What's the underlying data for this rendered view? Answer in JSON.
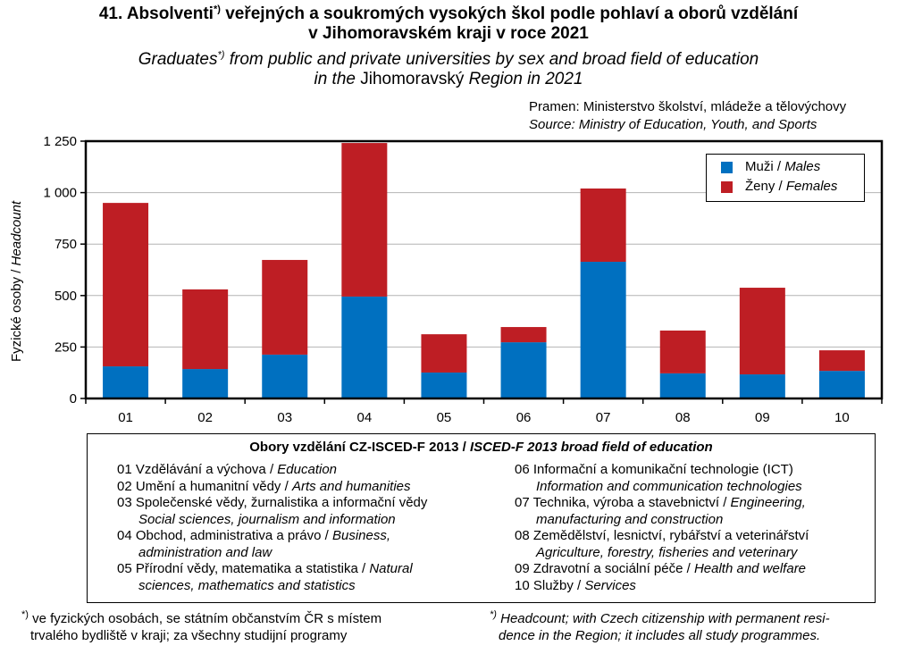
{
  "title": {
    "cz_prefix": "41. Absolventi",
    "cz_sup": "*)",
    "cz_rest": " veřejných a soukromých vysokých škol podle pohlaví a oborů vzdělání",
    "cz_line2": "v Jihomoravském kraji v roce 2021",
    "en_prefix": "Graduates",
    "en_sup": "*)",
    "en_rest": " from public and private universities by sex and broad field of education",
    "en_line2_a": "in the",
    "en_line2_b": " Jihomoravský ",
    "en_line2_c": "Region in 2021"
  },
  "source": {
    "cz": "Pramen: Ministerstvo školství, mládeže a tělovýchovy",
    "en": "Source: Ministry of Education, Youth, and Sports"
  },
  "chart_data": {
    "type": "bar",
    "stacked": true,
    "categories": [
      "01",
      "02",
      "03",
      "04",
      "05",
      "06",
      "07",
      "08",
      "09",
      "10"
    ],
    "series": [
      {
        "name": "Muži / Males",
        "name_cz": "Muži",
        "name_en": "Males",
        "color": "#0070c0",
        "values": [
          156,
          143,
          213,
          495,
          126,
          273,
          664,
          122,
          117,
          134
        ]
      },
      {
        "name": "Ženy / Females",
        "name_cz": "Ženy",
        "name_en": "Females",
        "color": "#be1e24",
        "values": [
          794,
          387,
          460,
          746,
          186,
          74,
          356,
          208,
          421,
          100
        ]
      }
    ],
    "ylabel_cz": "Fyzické osoby / ",
    "ylabel_en": "Headcount",
    "ylim": [
      0,
      1250
    ],
    "yticks": [
      0,
      250,
      500,
      750,
      1000,
      1250
    ],
    "ytick_labels": [
      "0",
      "250",
      "500",
      "750",
      "1 000",
      "1 250"
    ],
    "grid": true,
    "legend_position": "top-right"
  },
  "fields": {
    "heading_cz": "Obory vzdělání CZ-ISCED-F 2013 / ",
    "heading_en": "ISCED-F 2013 broad field of education",
    "left": [
      {
        "cz": "01 Vzdělávání a výchova / ",
        "en": "Education"
      },
      {
        "cz": "02 Umění a humanitní vědy / ",
        "en": "Arts and humanities"
      },
      {
        "cz": "03 Společenské vědy, žurnalistika a informační vědy",
        "en2": "Social sciences, journalism and information"
      },
      {
        "cz": "04 Obchod, administrativa a právo / ",
        "en": "Business,",
        "en2": "administration and law"
      },
      {
        "cz": "05 Přírodní vědy, matematika a statistika / ",
        "en": "Natural",
        "en2": "sciences, mathematics and statistics"
      }
    ],
    "right": [
      {
        "cz": "06 Informační a komunikační technologie (ICT)",
        "en2": "Information and communication technologies"
      },
      {
        "cz": "07 Technika, výroba a stavebnictví / ",
        "en": "Engineering,",
        "en2": "manufacturing and construction"
      },
      {
        "cz": "08 Zemědělství, lesnictví, rybářství a veterinářství",
        "en2": "Agriculture, forestry, fisheries and veterinary"
      },
      {
        "cz": "09 Zdravotní a sociální péče / ",
        "en": "Health and welfare"
      },
      {
        "cz": "10 Služby / ",
        "en": "Services"
      }
    ]
  },
  "footnotes": {
    "sup": "*)",
    "cz_line1": " ve fyzických osobách, se státním občanstvím ČR s místem",
    "cz_line2": "trvalého bydliště v kraji; za všechny studijní programy",
    "en_line1": " Headcount; with Czech citizenship with permanent resi-",
    "en_line2": "dence in the Region; it includes all study programmes."
  }
}
